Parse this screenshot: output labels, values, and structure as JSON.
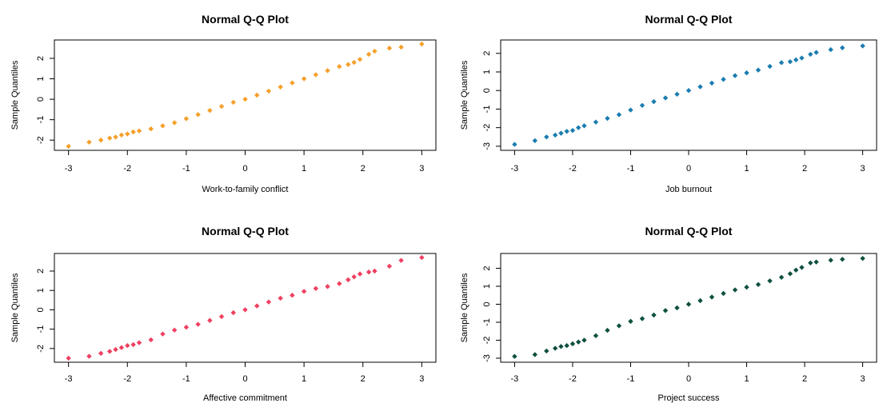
{
  "chart_data": [
    {
      "type": "scatter",
      "title": "Normal Q-Q Plot",
      "xlabel": "Work-to-family conflict",
      "ylabel": "Sample Quantiles",
      "xlim": [
        -3,
        3
      ],
      "ylim": [
        -2.3,
        2.7
      ],
      "xticks": [
        "-3",
        "-2",
        "-1",
        "0",
        "1",
        "2",
        "3"
      ],
      "yticks": [
        "-2",
        "-1",
        "0",
        "1",
        "2"
      ],
      "color": "#F5A02A",
      "marker": "diamond",
      "series": [
        {
          "x": [
            -3.0,
            -2.65,
            -2.45,
            -2.3,
            -2.2,
            -2.1,
            -2.0,
            -1.9,
            -1.8,
            -1.6,
            -1.4,
            -1.2,
            -1.0,
            -0.8,
            -0.6,
            -0.4,
            -0.2,
            0.0,
            0.2,
            0.4,
            0.6,
            0.8,
            1.0,
            1.2,
            1.4,
            1.6,
            1.75,
            1.85,
            1.95,
            2.1,
            2.2,
            2.45,
            2.65,
            3.0
          ],
          "y": [
            -2.3,
            -2.1,
            -2.0,
            -1.9,
            -1.85,
            -1.75,
            -1.7,
            -1.6,
            -1.55,
            -1.45,
            -1.3,
            -1.15,
            -0.95,
            -0.75,
            -0.55,
            -0.35,
            -0.15,
            0.0,
            0.2,
            0.4,
            0.6,
            0.8,
            1.0,
            1.2,
            1.4,
            1.6,
            1.7,
            1.8,
            1.95,
            2.2,
            2.35,
            2.5,
            2.55,
            2.7
          ]
        }
      ]
    },
    {
      "type": "scatter",
      "title": "Normal Q-Q Plot",
      "xlabel": "Job burnout",
      "ylabel": "Sample Quantiles",
      "xlim": [
        -3,
        3
      ],
      "ylim": [
        -3,
        2.5
      ],
      "xticks": [
        "-3",
        "-2",
        "-1",
        "0",
        "1",
        "2",
        "3"
      ],
      "yticks": [
        "-3",
        "-2",
        "-1",
        "0",
        "1",
        "2"
      ],
      "color": "#1A7DB0",
      "marker": "diamond",
      "series": [
        {
          "x": [
            -3.0,
            -2.65,
            -2.45,
            -2.3,
            -2.2,
            -2.1,
            -2.0,
            -1.9,
            -1.8,
            -1.6,
            -1.4,
            -1.2,
            -1.0,
            -0.8,
            -0.6,
            -0.4,
            -0.2,
            0.0,
            0.2,
            0.4,
            0.6,
            0.8,
            1.0,
            1.2,
            1.4,
            1.6,
            1.75,
            1.85,
            1.95,
            2.1,
            2.2,
            2.45,
            2.65,
            3.0
          ],
          "y": [
            -2.9,
            -2.7,
            -2.5,
            -2.4,
            -2.3,
            -2.2,
            -2.15,
            -2.0,
            -1.9,
            -1.7,
            -1.5,
            -1.3,
            -1.05,
            -0.8,
            -0.6,
            -0.4,
            -0.2,
            0.0,
            0.2,
            0.4,
            0.6,
            0.8,
            0.95,
            1.1,
            1.3,
            1.5,
            1.55,
            1.65,
            1.75,
            1.95,
            2.05,
            2.2,
            2.3,
            2.4
          ]
        }
      ]
    },
    {
      "type": "scatter",
      "title": "Normal Q-Q Plot",
      "xlabel": "Affective commitment",
      "ylabel": "Sample Quantiles",
      "xlim": [
        -3,
        3
      ],
      "ylim": [
        -2.5,
        2.7
      ],
      "xticks": [
        "-3",
        "-2",
        "-1",
        "0",
        "1",
        "2",
        "3"
      ],
      "yticks": [
        "-2",
        "-1",
        "0",
        "1",
        "2"
      ],
      "color": "#EF4060",
      "marker": "diamond",
      "series": [
        {
          "x": [
            -3.0,
            -2.65,
            -2.45,
            -2.3,
            -2.2,
            -2.1,
            -2.0,
            -1.9,
            -1.8,
            -1.6,
            -1.4,
            -1.2,
            -1.0,
            -0.8,
            -0.6,
            -0.4,
            -0.2,
            0.0,
            0.2,
            0.4,
            0.6,
            0.8,
            1.0,
            1.2,
            1.4,
            1.6,
            1.75,
            1.85,
            1.95,
            2.1,
            2.2,
            2.45,
            2.65,
            3.0
          ],
          "y": [
            -2.5,
            -2.4,
            -2.25,
            -2.15,
            -2.05,
            -1.95,
            -1.85,
            -1.8,
            -1.7,
            -1.55,
            -1.25,
            -1.05,
            -0.9,
            -0.75,
            -0.55,
            -0.35,
            -0.15,
            0.0,
            0.2,
            0.4,
            0.6,
            0.75,
            0.95,
            1.1,
            1.2,
            1.35,
            1.55,
            1.7,
            1.85,
            1.95,
            2.0,
            2.25,
            2.55,
            2.7
          ]
        }
      ]
    },
    {
      "type": "scatter",
      "title": "Normal Q-Q Plot",
      "xlabel": "Project success",
      "ylabel": "Sample Quantiles",
      "xlim": [
        -3,
        3
      ],
      "ylim": [
        -3,
        2.6
      ],
      "xticks": [
        "-3",
        "-2",
        "-1",
        "0",
        "1",
        "2",
        "3"
      ],
      "yticks": [
        "-3",
        "-2",
        "-1",
        "0",
        "1",
        "2"
      ],
      "color": "#0F5040",
      "marker": "diamond",
      "series": [
        {
          "x": [
            -3.0,
            -2.65,
            -2.45,
            -2.3,
            -2.2,
            -2.1,
            -2.0,
            -1.9,
            -1.8,
            -1.6,
            -1.4,
            -1.2,
            -1.0,
            -0.8,
            -0.6,
            -0.4,
            -0.2,
            0.0,
            0.2,
            0.4,
            0.6,
            0.8,
            1.0,
            1.2,
            1.4,
            1.6,
            1.75,
            1.85,
            1.95,
            2.1,
            2.2,
            2.45,
            2.65,
            3.0
          ],
          "y": [
            -2.9,
            -2.8,
            -2.6,
            -2.45,
            -2.35,
            -2.3,
            -2.2,
            -2.1,
            -2.0,
            -1.75,
            -1.45,
            -1.2,
            -0.95,
            -0.8,
            -0.6,
            -0.35,
            -0.2,
            0.0,
            0.2,
            0.4,
            0.6,
            0.8,
            0.95,
            1.1,
            1.3,
            1.5,
            1.7,
            1.9,
            2.05,
            2.3,
            2.35,
            2.45,
            2.5,
            2.55
          ]
        }
      ]
    }
  ]
}
